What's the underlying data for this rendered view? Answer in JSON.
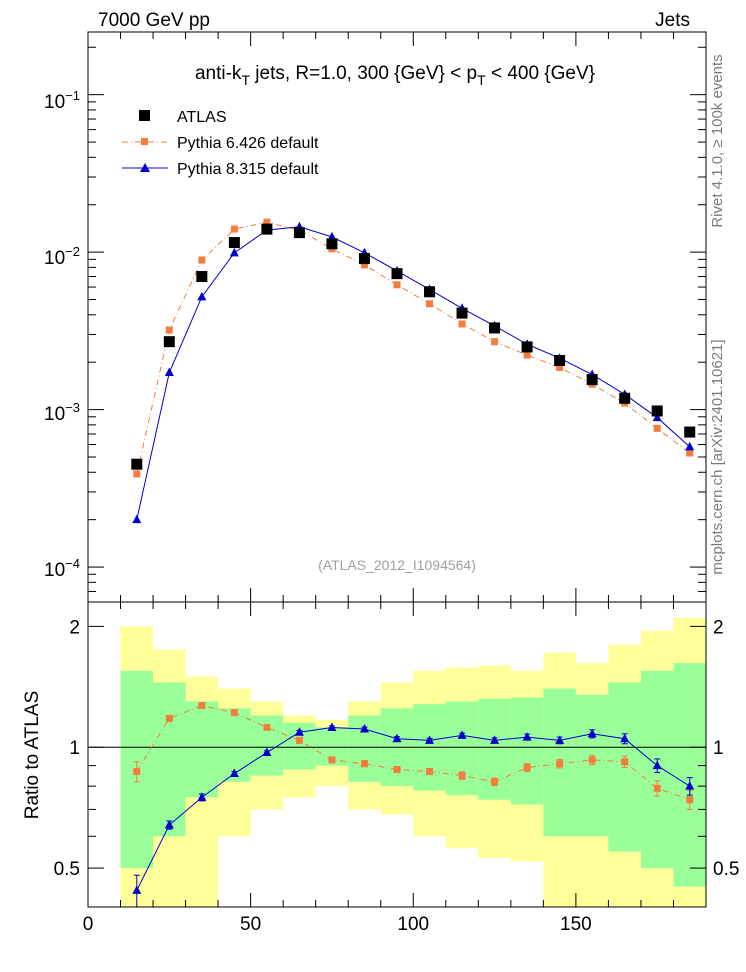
{
  "header": {
    "energy_label": "7000 GeV pp",
    "category_label": "Jets"
  },
  "side_labels": {
    "rivet": "Rivet 4.1.0, ≥ 100k events",
    "mcplots": "mcplots.cern.ch [arXiv:2401.10621]"
  },
  "chart_data": [
    {
      "type": "scatter",
      "panel": "main",
      "title": "anti-kT jets, R=1.0, 300 {GeV} < pT < 400 {GeV}",
      "title_parts": {
        "pre": "anti-k",
        "sub1": "T",
        "mid": " jets, R=1.0, 300 {GeV}  < p",
        "sub2": "T",
        "post": " < 400 {GeV}"
      },
      "analysis_label": "(ATLAS_2012_I1094564)",
      "yscale": "log",
      "xlim": [
        0,
        190
      ],
      "ylim": [
        6e-05,
        0.25
      ],
      "ytick_labels": [
        {
          "base": "10",
          "exp": "−4",
          "value": 0.0001
        },
        {
          "base": "10",
          "exp": "−3",
          "value": 0.001
        },
        {
          "base": "10",
          "exp": "−2",
          "value": 0.01
        },
        {
          "base": "10",
          "exp": "−1",
          "value": 0.1
        }
      ],
      "x": [
        15,
        25,
        35,
        45,
        55,
        65,
        75,
        85,
        95,
        105,
        115,
        125,
        135,
        145,
        155,
        165,
        175,
        185
      ],
      "legend_position": "top-left",
      "series": [
        {
          "name": "ATLAS",
          "color": "#000000",
          "marker": "square",
          "values": [
            0.00045,
            0.0027,
            0.007,
            0.0115,
            0.014,
            0.0133,
            0.0113,
            0.0091,
            0.0073,
            0.0056,
            0.0041,
            0.0033,
            0.0025,
            0.00205,
            0.00155,
            0.00118,
            0.00098,
            0.00072
          ]
        },
        {
          "name": "Pythia 6.426 default",
          "color": "#f47c3c",
          "marker": "square",
          "line": "dashdot",
          "values": [
            0.00039,
            0.0032,
            0.0089,
            0.014,
            0.0155,
            0.0138,
            0.0105,
            0.0083,
            0.0062,
            0.0047,
            0.0035,
            0.0027,
            0.00222,
            0.00185,
            0.00145,
            0.0011,
            0.00076,
            0.00053
          ]
        },
        {
          "name": "Pythia 8.315 default",
          "color": "#0000cc",
          "marker": "triangle",
          "line": "solid",
          "values": [
            0.0002,
            0.00172,
            0.0052,
            0.0099,
            0.0138,
            0.0145,
            0.0125,
            0.0099,
            0.0076,
            0.0058,
            0.0044,
            0.0034,
            0.0026,
            0.00212,
            0.00167,
            0.00125,
            0.00089,
            0.00058
          ]
        }
      ]
    },
    {
      "type": "scatter",
      "panel": "ratio",
      "ylabel": "Ratio to ATLAS",
      "yscale": "log",
      "xlim": [
        0,
        190
      ],
      "ylim": [
        0.4,
        2.3
      ],
      "xticks": [
        0,
        50,
        100,
        150
      ],
      "yticks": [
        0.5,
        1,
        2
      ],
      "reference_line": 1,
      "band_edges": [
        10,
        20,
        30,
        40,
        50,
        60,
        70,
        80,
        90,
        100,
        110,
        120,
        130,
        140,
        150,
        160,
        170,
        180,
        190
      ],
      "yellow_band": {
        "low": [
          0.4,
          0.4,
          0.4,
          0.6,
          0.7,
          0.75,
          0.8,
          0.7,
          0.68,
          0.6,
          0.56,
          0.53,
          0.52,
          0.4,
          0.4,
          0.4,
          0.4,
          0.4
        ],
        "high": [
          2.0,
          1.75,
          1.5,
          1.4,
          1.3,
          1.2,
          1.17,
          1.3,
          1.45,
          1.55,
          1.58,
          1.6,
          1.55,
          1.72,
          1.62,
          1.8,
          1.95,
          2.1
        ]
      },
      "green_band": {
        "low": [
          0.5,
          0.6,
          0.75,
          0.82,
          0.85,
          0.88,
          0.9,
          0.82,
          0.8,
          0.78,
          0.76,
          0.74,
          0.72,
          0.6,
          0.6,
          0.55,
          0.5,
          0.45
        ],
        "high": [
          1.55,
          1.45,
          1.3,
          1.25,
          1.2,
          1.15,
          1.12,
          1.2,
          1.25,
          1.28,
          1.3,
          1.32,
          1.33,
          1.4,
          1.35,
          1.45,
          1.55,
          1.62
        ]
      },
      "series": [
        {
          "name": "Pythia 6.426 default",
          "color": "#f47c3c",
          "marker": "square",
          "line": "dashdot",
          "values": [
            0.87,
            1.18,
            1.27,
            1.22,
            1.12,
            1.04,
            0.93,
            0.91,
            0.88,
            0.87,
            0.85,
            0.82,
            0.89,
            0.91,
            0.93,
            0.92,
            0.79,
            0.74
          ],
          "errors": [
            0.05,
            0.02,
            0.02,
            0.015,
            0.015,
            0.015,
            0.015,
            0.015,
            0.015,
            0.015,
            0.018,
            0.018,
            0.02,
            0.022,
            0.025,
            0.03,
            0.035,
            0.04
          ]
        },
        {
          "name": "Pythia 8.315 default",
          "color": "#0000cc",
          "marker": "triangle",
          "line": "solid",
          "values": [
            0.44,
            0.64,
            0.75,
            0.86,
            0.97,
            1.09,
            1.12,
            1.11,
            1.05,
            1.04,
            1.07,
            1.04,
            1.06,
            1.04,
            1.08,
            1.05,
            0.9,
            0.8
          ],
          "errors": [
            0.04,
            0.015,
            0.015,
            0.01,
            0.01,
            0.01,
            0.01,
            0.012,
            0.012,
            0.012,
            0.014,
            0.015,
            0.018,
            0.02,
            0.025,
            0.03,
            0.035,
            0.04
          ]
        }
      ]
    }
  ]
}
